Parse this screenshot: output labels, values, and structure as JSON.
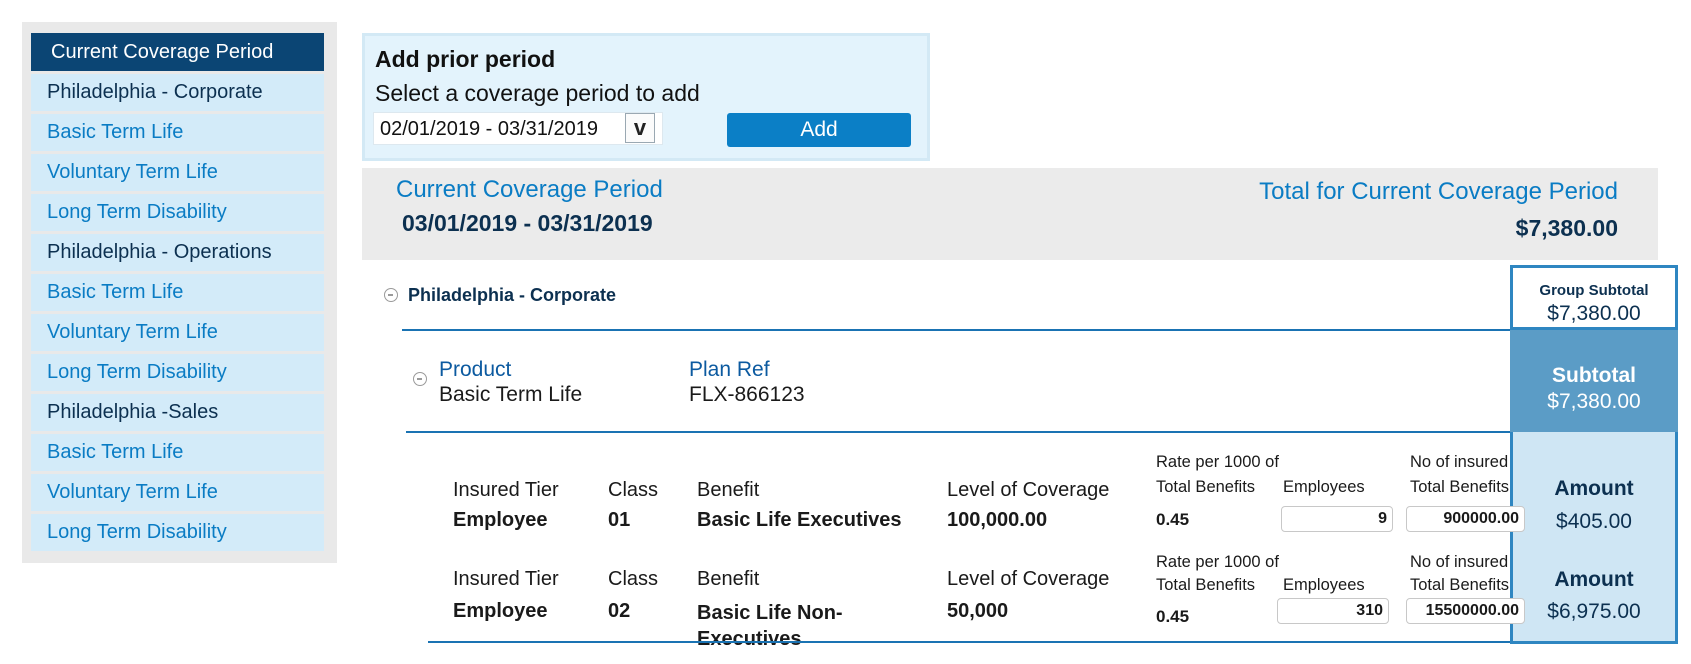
{
  "sidebar": {
    "header": "Current Coverage Period",
    "items": [
      {
        "label": "Philadelphia - Corporate",
        "type": "group"
      },
      {
        "label": "Basic Term Life",
        "type": "product"
      },
      {
        "label": "Voluntary Term Life",
        "type": "product"
      },
      {
        "label": "Long Term Disability",
        "type": "product"
      },
      {
        "label": "Philadelphia - Operations",
        "type": "group"
      },
      {
        "label": "Basic Term Life",
        "type": "product"
      },
      {
        "label": "Voluntary Term Life",
        "type": "product"
      },
      {
        "label": "Long Term Disability",
        "type": "product"
      },
      {
        "label": "Philadelphia -Sales",
        "type": "group"
      },
      {
        "label": "Basic Term Life",
        "type": "product"
      },
      {
        "label": "Voluntary Term Life",
        "type": "product"
      },
      {
        "label": "Long Term Disability",
        "type": "product"
      }
    ]
  },
  "add_prior": {
    "title": "Add prior period",
    "subtitle": "Select a coverage period to add",
    "selected_period": "02/01/2019 - 03/31/2019",
    "dropdown_glyph": "v",
    "add_button": "Add"
  },
  "current_period": {
    "label": "Current Coverage Period",
    "dates": "03/01/2019 - 03/31/2019",
    "total_label": "Total for Current Coverage Period",
    "total_value": "$7,380.00"
  },
  "group": {
    "name": "Philadelphia - Corporate",
    "subtotal_label": "Group Subtotal",
    "subtotal_value": "$7,380.00"
  },
  "product": {
    "product_label": "Product",
    "product_value": "Basic Term Life",
    "planref_label": "Plan Ref",
    "planref_value": "FLX-866123",
    "subtotal_label": "Subtotal",
    "subtotal_value": "$7,380.00"
  },
  "rows": [
    {
      "tier_label": "Insured Tier",
      "tier": "Employee",
      "class_label": "Class",
      "class": "01",
      "benefit_label": "Benefit",
      "benefit": "Basic Life Executives",
      "coverage_label": "Level of Coverage",
      "coverage": "100,000.00",
      "rate_label": "Rate per 1000 of",
      "rate_label2": "Total Benefits",
      "rate": "0.45",
      "employees_label": "Employees",
      "employees": "9",
      "insured_label": "No of insured",
      "insured_label2": "Total Benefits",
      "insured": "900000.00",
      "amount_label": "Amount",
      "amount": "$405.00"
    },
    {
      "tier_label": "Insured Tier",
      "tier": "Employee",
      "class_label": "Class",
      "class": "02",
      "benefit_label": "Benefit",
      "benefit": "Basic Life Non-\nExecutives",
      "coverage_label": "Level of Coverage",
      "coverage": "50,000",
      "rate_label": "Rate per 1000 of",
      "rate_label2": "Total Benefits",
      "rate": "0.45",
      "employees_label": "Employees",
      "employees": "310",
      "insured_label": "No of insured",
      "insured_label2": "Total Benefits",
      "insured": "15500000.00",
      "amount_label": "Amount",
      "amount": "$6,975.00"
    }
  ]
}
